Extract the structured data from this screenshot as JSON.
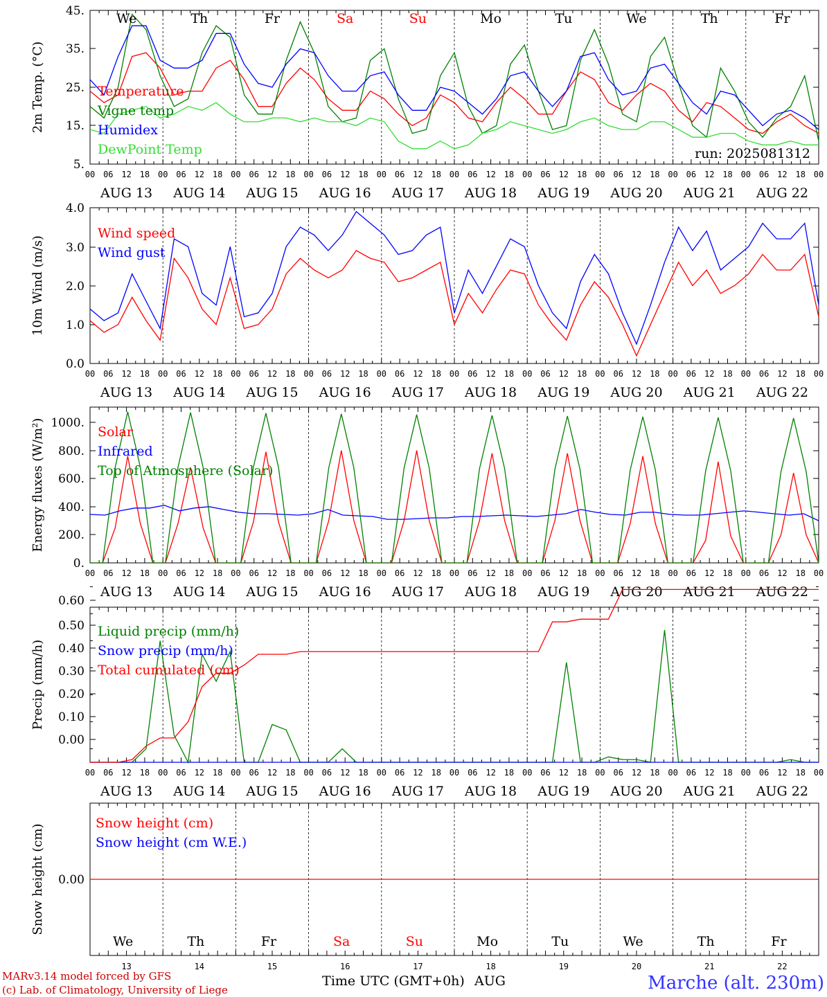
{
  "days": [
    "We",
    "Th",
    "Fr",
    "Sa",
    "Su",
    "Mo",
    "Tu",
    "We",
    "Th",
    "Fr"
  ],
  "weekend_flags": [
    false,
    false,
    false,
    true,
    true,
    false,
    false,
    false,
    false,
    false
  ],
  "dates": [
    "AUG 13",
    "AUG 14",
    "AUG 15",
    "AUG 16",
    "AUG 17",
    "AUG 18",
    "AUG 19",
    "AUG 20",
    "AUG 21",
    "AUG 22"
  ],
  "day_numbers": [
    "13",
    "14",
    "15",
    "16",
    "17",
    "18",
    "19",
    "20",
    "21",
    "22"
  ],
  "hour_ticks": [
    "00",
    "06",
    "12",
    "18"
  ],
  "hour_end": "00",
  "colors": {
    "red": "#ff0000",
    "green": "#008000",
    "blue": "#0000ff",
    "lightgreen": "#33dd33",
    "darkred": "#cc0000",
    "weekend": "#ff0000"
  },
  "footer": {
    "credit1": "MARv3.14 model forced by GFS",
    "credit2": "(c) Lab. of Climatology, University of Liege",
    "xlabel": "Time UTC (GMT+0h)",
    "month": "AUG",
    "station": "Marche (alt. 230m)"
  },
  "chart_data": [
    {
      "type": "line",
      "ylabel": "2m Temp. (°C)",
      "yticks": [
        "45.",
        "35.",
        "25.",
        "15.",
        "5."
      ],
      "ylim": [
        5,
        45
      ],
      "run": "run: 2025081312",
      "x_start": "2025-08-13 00:00",
      "x_step_hours": 6,
      "series": [
        {
          "name": "Temperature",
          "color": "red",
          "values": [
            24,
            21,
            23,
            33,
            34,
            30,
            23,
            24,
            24,
            30,
            32,
            27,
            20,
            20,
            26,
            30,
            27,
            22,
            19,
            19,
            24,
            22,
            18,
            15,
            17,
            23,
            21,
            17,
            16,
            21,
            25,
            22,
            18,
            18,
            24,
            29,
            27,
            21,
            19,
            23,
            26,
            24,
            19,
            16,
            21,
            20,
            17,
            14,
            13,
            16,
            18,
            15,
            13
          ]
        },
        {
          "name": "Vigne temp",
          "color": "green",
          "values": [
            20,
            17,
            25,
            44,
            40,
            28,
            20,
            22,
            34,
            41,
            38,
            23,
            18,
            18,
            32,
            42,
            34,
            20,
            16,
            17,
            32,
            35,
            22,
            13,
            14,
            28,
            34,
            20,
            13,
            15,
            31,
            36,
            24,
            14,
            15,
            32,
            40,
            31,
            18,
            16,
            33,
            38,
            26,
            15,
            12,
            30,
            24,
            16,
            12,
            17,
            20,
            28,
            11
          ]
        },
        {
          "name": "Humidex",
          "color": "blue",
          "values": [
            27,
            23,
            33,
            41,
            41,
            32,
            30,
            30,
            32,
            39,
            39,
            31,
            26,
            25,
            31,
            35,
            34,
            28,
            24,
            24,
            28,
            29,
            23,
            19,
            19,
            25,
            24,
            21,
            18,
            22,
            28,
            29,
            24,
            20,
            24,
            33,
            34,
            27,
            23,
            24,
            30,
            31,
            26,
            21,
            18,
            24,
            23,
            19,
            15,
            18,
            19,
            17,
            14
          ]
        },
        {
          "name": "DewPoint Temp",
          "color": "lightgreen",
          "values": [
            14,
            13,
            18,
            19,
            20,
            17,
            18,
            20,
            19,
            21,
            18,
            16,
            16,
            17,
            17,
            16,
            17,
            16,
            16,
            15,
            17,
            16,
            11,
            9,
            9,
            11,
            9,
            10,
            13,
            14,
            16,
            15,
            14,
            13,
            14,
            16,
            17,
            15,
            14,
            14,
            16,
            16,
            14,
            12,
            12,
            13,
            13,
            11,
            10,
            10,
            11,
            10,
            10
          ]
        }
      ]
    },
    {
      "type": "line",
      "ylabel": "10m Wind (m/s)",
      "yticks": [
        "4.0",
        "3.0",
        "2.0",
        "1.0",
        "0.0"
      ],
      "ylim": [
        0,
        4
      ],
      "series": [
        {
          "name": "Wind speed",
          "color": "red",
          "values": [
            1.1,
            0.8,
            1.0,
            1.7,
            1.1,
            0.6,
            2.7,
            2.2,
            1.4,
            1.0,
            2.2,
            0.9,
            1.0,
            1.4,
            2.3,
            2.7,
            2.4,
            2.2,
            2.4,
            2.9,
            2.7,
            2.6,
            2.1,
            2.2,
            2.4,
            2.6,
            1.0,
            1.8,
            1.3,
            1.9,
            2.4,
            2.3,
            1.5,
            1.0,
            0.6,
            1.5,
            2.1,
            1.7,
            1.0,
            0.2,
            1.0,
            1.8,
            2.6,
            2.0,
            2.4,
            1.8,
            2.0,
            2.3,
            2.8,
            2.4,
            2.4,
            2.8,
            1.2
          ]
        },
        {
          "name": "Wind gust",
          "color": "blue",
          "values": [
            1.4,
            1.1,
            1.3,
            2.3,
            1.6,
            0.9,
            3.2,
            3.0,
            1.8,
            1.5,
            3.0,
            1.2,
            1.3,
            1.8,
            3.0,
            3.5,
            3.3,
            2.9,
            3.3,
            3.9,
            3.6,
            3.3,
            2.8,
            2.9,
            3.3,
            3.5,
            1.3,
            2.4,
            1.8,
            2.5,
            3.2,
            3.0,
            2.0,
            1.3,
            0.9,
            2.1,
            2.8,
            2.3,
            1.3,
            0.5,
            1.5,
            2.6,
            3.5,
            2.9,
            3.4,
            2.4,
            2.7,
            3.0,
            3.6,
            3.2,
            3.2,
            3.6,
            1.5
          ]
        }
      ]
    },
    {
      "type": "line",
      "ylabel": "Energy fluxes (W/m²)",
      "yticks": [
        "1000.",
        "800.",
        "600.",
        "400.",
        "200.",
        "0."
      ],
      "ylim": [
        0,
        1100
      ],
      "series": [
        {
          "name": "Solar",
          "color": "red",
          "values": [
            0,
            0,
            250,
            760,
            280,
            0,
            0,
            280,
            680,
            250,
            0,
            0,
            0,
            290,
            790,
            290,
            0,
            0,
            0,
            300,
            800,
            300,
            0,
            0,
            0,
            300,
            800,
            300,
            0,
            0,
            0,
            300,
            780,
            300,
            0,
            0,
            0,
            300,
            780,
            300,
            0,
            0,
            0,
            280,
            760,
            280,
            0,
            0,
            0,
            160,
            720,
            190,
            0,
            0,
            0,
            200,
            640,
            200,
            0
          ]
        },
        {
          "name": "Infrared",
          "color": "blue",
          "values": [
            345,
            340,
            370,
            390,
            390,
            410,
            370,
            390,
            400,
            380,
            360,
            350,
            350,
            345,
            340,
            350,
            380,
            340,
            335,
            330,
            310,
            310,
            315,
            320,
            320,
            330,
            330,
            335,
            340,
            335,
            330,
            340,
            350,
            380,
            360,
            345,
            340,
            360,
            360,
            345,
            340,
            340,
            350,
            360,
            370,
            360,
            350,
            340,
            350,
            300
          ]
        },
        {
          "name": "Top of Atmosphere (Solar)",
          "color": "green",
          "values": [
            0,
            0,
            680,
            1075,
            680,
            0,
            0,
            680,
            1070,
            680,
            0,
            0,
            0,
            680,
            1065,
            680,
            0,
            0,
            0,
            675,
            1060,
            675,
            0,
            0,
            0,
            675,
            1055,
            675,
            0,
            0,
            0,
            670,
            1050,
            670,
            0,
            0,
            0,
            665,
            1045,
            665,
            0,
            0,
            0,
            660,
            1040,
            660,
            0,
            0,
            0,
            655,
            1035,
            655,
            0,
            0,
            0,
            650,
            1030,
            650,
            0
          ]
        }
      ]
    },
    {
      "type": "line",
      "ylabel": "Precip (mm/h)",
      "yticks": [
        "0.60",
        "0.50",
        "0.40",
        "0.30",
        "0.20",
        "0.10",
        "0.00"
      ],
      "ylim": [
        0,
        0.66
      ],
      "series": [
        {
          "name": "Liquid precip (mm/h)",
          "color": "green",
          "values": [
            0,
            0,
            0,
            0,
            0.05,
            0.45,
            0.1,
            0,
            0.4,
            0.3,
            0.41,
            0,
            0,
            0.14,
            0.12,
            0,
            0,
            0,
            0.05,
            0,
            0,
            0,
            0,
            0,
            0,
            0,
            0,
            0,
            0,
            0,
            0,
            0,
            0,
            0,
            0.37,
            0,
            0,
            0.02,
            0.01,
            0.01,
            0,
            0.49,
            0,
            0,
            0,
            0,
            0,
            0,
            0,
            0,
            0.01,
            0,
            0
          ]
        },
        {
          "name": "Snow precip (mm/h)",
          "color": "blue",
          "values": [
            0,
            0,
            0,
            0,
            0,
            0,
            0,
            0,
            0,
            0,
            0,
            0,
            0,
            0,
            0,
            0,
            0,
            0,
            0,
            0,
            0,
            0,
            0,
            0,
            0,
            0,
            0,
            0,
            0,
            0,
            0,
            0,
            0,
            0,
            0,
            0,
            0,
            0,
            0,
            0,
            0,
            0,
            0,
            0,
            0,
            0,
            0,
            0,
            0,
            0,
            0,
            0,
            0
          ]
        },
        {
          "name": "Total cumulated (cm)",
          "color": "red",
          "values": [
            0,
            0,
            0,
            0.01,
            0.06,
            0.09,
            0.09,
            0.15,
            0.28,
            0.33,
            0.33,
            0.36,
            0.4,
            0.4,
            0.4,
            0.41,
            0.41,
            0.41,
            0.41,
            0.41,
            0.41,
            0.41,
            0.41,
            0.41,
            0.41,
            0.41,
            0.41,
            0.41,
            0.41,
            0.41,
            0.41,
            0.41,
            0.41,
            0.52,
            0.52,
            0.53,
            0.53,
            0.53,
            0.64,
            0.64,
            0.64,
            0.64,
            0.64,
            0.64,
            0.64,
            0.64,
            0.64,
            0.64,
            0.64,
            0.64,
            0.64,
            0.64,
            0.64
          ]
        }
      ]
    },
    {
      "type": "line",
      "ylabel": "Snow height (cm)",
      "yticks": [
        "0.00"
      ],
      "ylim": [
        -1,
        1
      ],
      "series": [
        {
          "name": "Snow height (cm)",
          "color": "red",
          "values": [
            0,
            0
          ]
        },
        {
          "name": "Snow height (cm W.E.)",
          "color": "blue",
          "values": [
            0,
            0
          ]
        }
      ]
    }
  ]
}
